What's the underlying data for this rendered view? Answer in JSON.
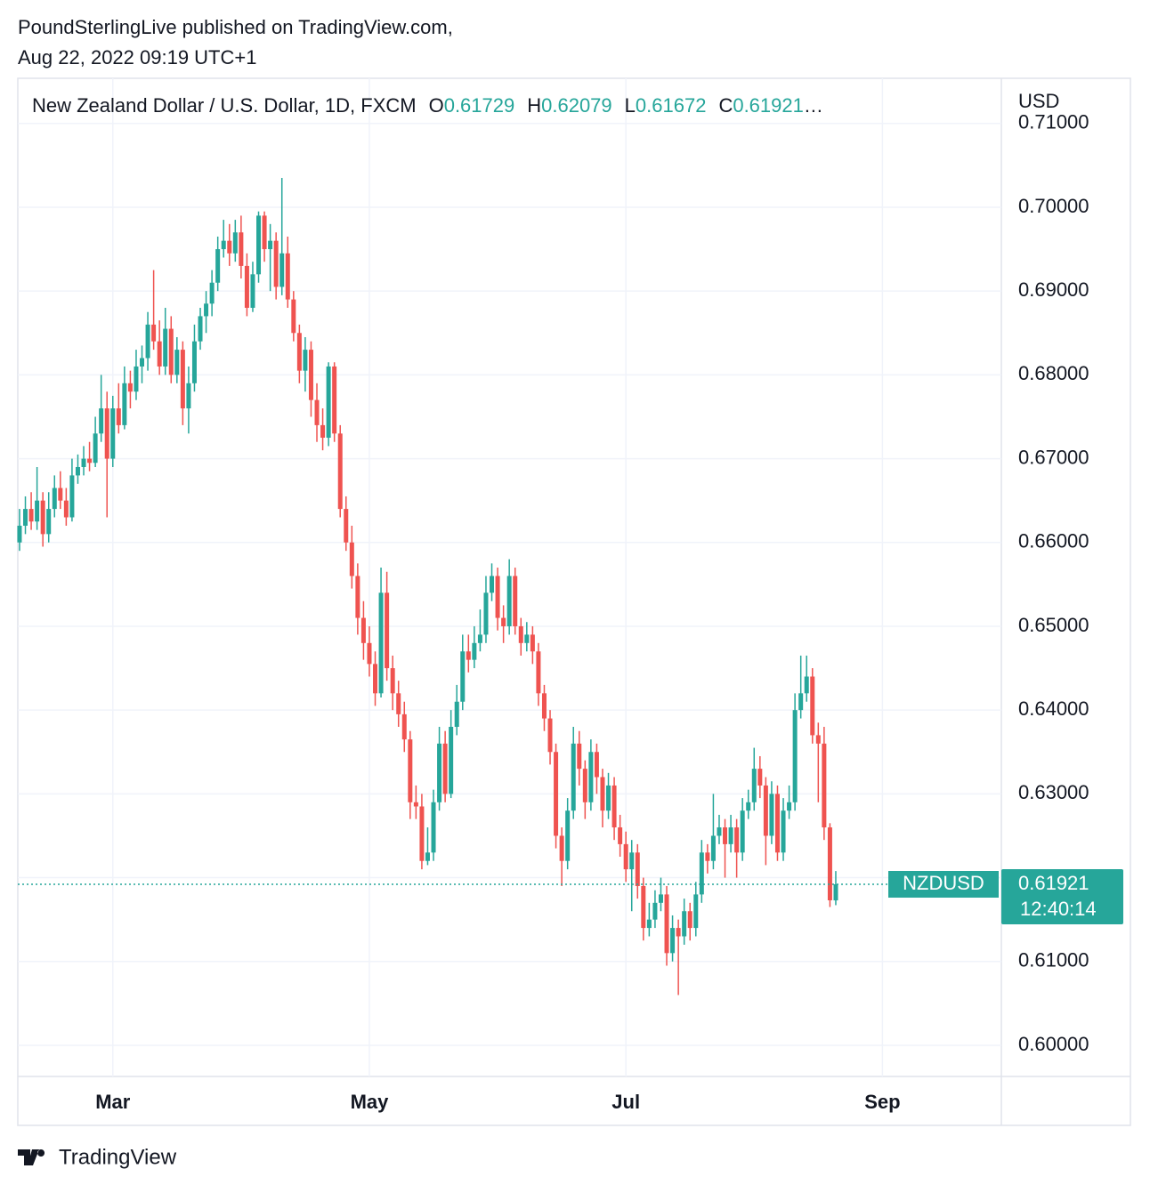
{
  "header": {
    "publisher": "PoundSterlingLive published on TradingView.com,",
    "timestamp": "Aug 22, 2022 09:19 UTC+1"
  },
  "footer": {
    "brand": "TradingView"
  },
  "chart_data": {
    "type": "candlestick",
    "title": "New Zealand Dollar / U.S. Dollar, 1D, FXCM",
    "ohlc_labels": [
      "O",
      "H",
      "L",
      "C"
    ],
    "legend_ellipsis": "…",
    "y_axis_label": "USD",
    "symbol": "NZDUSD",
    "countdown": "12:40:14",
    "up_color": "#26a69a",
    "down_color": "#ef5350",
    "grid": true,
    "xlim": [
      -0.3,
      168.4
    ],
    "xticks": [
      {
        "value": 16,
        "label": "Mar"
      },
      {
        "value": 60,
        "label": "May"
      },
      {
        "value": 104,
        "label": "Jul"
      },
      {
        "value": 148,
        "label": "Sep"
      }
    ],
    "ylim": [
      0.59628,
      0.71539
    ],
    "yticks": [
      {
        "value": 0.6,
        "label": "0.60000"
      },
      {
        "value": 0.61,
        "label": "0.61000"
      },
      {
        "value": 0.62,
        "label": "0.62000"
      },
      {
        "value": 0.63,
        "label": "0.63000"
      },
      {
        "value": 0.64,
        "label": "0.64000"
      },
      {
        "value": 0.65,
        "label": "0.65000"
      },
      {
        "value": 0.66,
        "label": "0.66000"
      },
      {
        "value": 0.67,
        "label": "0.67000"
      },
      {
        "value": 0.68,
        "label": "0.68000"
      },
      {
        "value": 0.69,
        "label": "0.69000"
      },
      {
        "value": 0.7,
        "label": "0.70000"
      },
      {
        "value": 0.71,
        "label": "0.71000"
      }
    ],
    "ohlc": [
      [
        0.66,
        0.664,
        0.659,
        0.662
      ],
      [
        0.662,
        0.6655,
        0.661,
        0.664
      ],
      [
        0.664,
        0.666,
        0.6615,
        0.6625
      ],
      [
        0.6625,
        0.669,
        0.6615,
        0.665
      ],
      [
        0.665,
        0.666,
        0.6595,
        0.661
      ],
      [
        0.661,
        0.666,
        0.66,
        0.664
      ],
      [
        0.664,
        0.668,
        0.663,
        0.6665
      ],
      [
        0.6665,
        0.6685,
        0.664,
        0.665
      ],
      [
        0.665,
        0.6665,
        0.662,
        0.663
      ],
      [
        0.663,
        0.67,
        0.6625,
        0.668
      ],
      [
        0.668,
        0.6705,
        0.667,
        0.669
      ],
      [
        0.669,
        0.6715,
        0.668,
        0.67
      ],
      [
        0.67,
        0.672,
        0.6685,
        0.6695
      ],
      [
        0.6695,
        0.675,
        0.669,
        0.673
      ],
      [
        0.673,
        0.68,
        0.672,
        0.676
      ],
      [
        0.676,
        0.678,
        0.663,
        0.67
      ],
      [
        0.67,
        0.6775,
        0.669,
        0.676
      ],
      [
        0.676,
        0.679,
        0.673,
        0.674
      ],
      [
        0.674,
        0.681,
        0.6735,
        0.679
      ],
      [
        0.679,
        0.6805,
        0.676,
        0.678
      ],
      [
        0.678,
        0.683,
        0.677,
        0.681
      ],
      [
        0.681,
        0.6835,
        0.679,
        0.682
      ],
      [
        0.682,
        0.6875,
        0.6805,
        0.686
      ],
      [
        0.686,
        0.6925,
        0.683,
        0.684
      ],
      [
        0.684,
        0.6865,
        0.68,
        0.681
      ],
      [
        0.681,
        0.688,
        0.68,
        0.6855
      ],
      [
        0.6855,
        0.687,
        0.679,
        0.68
      ],
      [
        0.68,
        0.6845,
        0.679,
        0.683
      ],
      [
        0.683,
        0.684,
        0.674,
        0.676
      ],
      [
        0.676,
        0.681,
        0.673,
        0.679
      ],
      [
        0.679,
        0.686,
        0.678,
        0.684
      ],
      [
        0.684,
        0.688,
        0.683,
        0.687
      ],
      [
        0.687,
        0.69,
        0.685,
        0.6885
      ],
      [
        0.6885,
        0.6925,
        0.687,
        0.691
      ],
      [
        0.691,
        0.6965,
        0.69,
        0.695
      ],
      [
        0.695,
        0.6985,
        0.694,
        0.696
      ],
      [
        0.696,
        0.698,
        0.693,
        0.6945
      ],
      [
        0.6945,
        0.6985,
        0.6935,
        0.697
      ],
      [
        0.697,
        0.699,
        0.6915,
        0.693
      ],
      [
        0.693,
        0.6945,
        0.687,
        0.688
      ],
      [
        0.688,
        0.6935,
        0.6875,
        0.692
      ],
      [
        0.692,
        0.6995,
        0.691,
        0.699
      ],
      [
        0.699,
        0.6995,
        0.6935,
        0.695
      ],
      [
        0.695,
        0.698,
        0.69,
        0.696
      ],
      [
        0.696,
        0.697,
        0.689,
        0.6905
      ],
      [
        0.6905,
        0.7035,
        0.6895,
        0.6945
      ],
      [
        0.6945,
        0.6965,
        0.688,
        0.689
      ],
      [
        0.689,
        0.69,
        0.684,
        0.685
      ],
      [
        0.685,
        0.686,
        0.679,
        0.6805
      ],
      [
        0.6805,
        0.6845,
        0.678,
        0.683
      ],
      [
        0.683,
        0.684,
        0.675,
        0.677
      ],
      [
        0.677,
        0.679,
        0.672,
        0.674
      ],
      [
        0.674,
        0.676,
        0.671,
        0.6725
      ],
      [
        0.6725,
        0.6815,
        0.6715,
        0.681
      ],
      [
        0.681,
        0.6815,
        0.672,
        0.673
      ],
      [
        0.673,
        0.674,
        0.663,
        0.664
      ],
      [
        0.664,
        0.6655,
        0.659,
        0.66
      ],
      [
        0.66,
        0.662,
        0.6545,
        0.656
      ],
      [
        0.656,
        0.6575,
        0.649,
        0.651
      ],
      [
        0.651,
        0.653,
        0.646,
        0.648
      ],
      [
        0.648,
        0.65,
        0.644,
        0.6455
      ],
      [
        0.6455,
        0.647,
        0.6405,
        0.642
      ],
      [
        0.642,
        0.657,
        0.6415,
        0.654
      ],
      [
        0.654,
        0.6565,
        0.6435,
        0.645
      ],
      [
        0.645,
        0.6465,
        0.64,
        0.642
      ],
      [
        0.642,
        0.6435,
        0.638,
        0.6395
      ],
      [
        0.6395,
        0.641,
        0.635,
        0.6365
      ],
      [
        0.6365,
        0.6375,
        0.627,
        0.629
      ],
      [
        0.629,
        0.631,
        0.627,
        0.6285
      ],
      [
        0.6285,
        0.63,
        0.621,
        0.622
      ],
      [
        0.622,
        0.626,
        0.6215,
        0.623
      ],
      [
        0.623,
        0.6305,
        0.622,
        0.629
      ],
      [
        0.629,
        0.638,
        0.628,
        0.636
      ],
      [
        0.636,
        0.6375,
        0.629,
        0.63
      ],
      [
        0.63,
        0.64,
        0.6295,
        0.638
      ],
      [
        0.638,
        0.643,
        0.637,
        0.641
      ],
      [
        0.641,
        0.649,
        0.64,
        0.647
      ],
      [
        0.647,
        0.649,
        0.6445,
        0.646
      ],
      [
        0.646,
        0.65,
        0.645,
        0.648
      ],
      [
        0.648,
        0.652,
        0.647,
        0.649
      ],
      [
        0.649,
        0.656,
        0.648,
        0.654
      ],
      [
        0.654,
        0.6575,
        0.653,
        0.656
      ],
      [
        0.656,
        0.657,
        0.6495,
        0.651
      ],
      [
        0.651,
        0.6525,
        0.648,
        0.65
      ],
      [
        0.65,
        0.658,
        0.649,
        0.656
      ],
      [
        0.656,
        0.657,
        0.649,
        0.65
      ],
      [
        0.65,
        0.651,
        0.6465,
        0.648
      ],
      [
        0.648,
        0.6505,
        0.647,
        0.649
      ],
      [
        0.649,
        0.65,
        0.6455,
        0.647
      ],
      [
        0.647,
        0.648,
        0.6405,
        0.642
      ],
      [
        0.642,
        0.643,
        0.6375,
        0.639
      ],
      [
        0.639,
        0.64,
        0.6335,
        0.635
      ],
      [
        0.635,
        0.636,
        0.6235,
        0.625
      ],
      [
        0.625,
        0.626,
        0.619,
        0.622
      ],
      [
        0.622,
        0.6295,
        0.621,
        0.628
      ],
      [
        0.628,
        0.638,
        0.627,
        0.636
      ],
      [
        0.636,
        0.6375,
        0.631,
        0.633
      ],
      [
        0.633,
        0.634,
        0.627,
        0.629
      ],
      [
        0.629,
        0.6365,
        0.628,
        0.635
      ],
      [
        0.635,
        0.636,
        0.63,
        0.632
      ],
      [
        0.632,
        0.633,
        0.626,
        0.628
      ],
      [
        0.628,
        0.6325,
        0.627,
        0.631
      ],
      [
        0.631,
        0.632,
        0.6245,
        0.626
      ],
      [
        0.626,
        0.6275,
        0.6225,
        0.624
      ],
      [
        0.624,
        0.6255,
        0.6195,
        0.621
      ],
      [
        0.621,
        0.6245,
        0.616,
        0.623
      ],
      [
        0.623,
        0.624,
        0.6175,
        0.619
      ],
      [
        0.619,
        0.62,
        0.6125,
        0.614
      ],
      [
        0.614,
        0.617,
        0.613,
        0.615
      ],
      [
        0.615,
        0.6185,
        0.614,
        0.617
      ],
      [
        0.617,
        0.62,
        0.616,
        0.618
      ],
      [
        0.618,
        0.619,
        0.6095,
        0.611
      ],
      [
        0.611,
        0.6155,
        0.61,
        0.614
      ],
      [
        0.614,
        0.615,
        0.606,
        0.613
      ],
      [
        0.613,
        0.6175,
        0.612,
        0.616
      ],
      [
        0.616,
        0.617,
        0.6125,
        0.614
      ],
      [
        0.614,
        0.6195,
        0.613,
        0.618
      ],
      [
        0.618,
        0.6245,
        0.617,
        0.623
      ],
      [
        0.623,
        0.624,
        0.6205,
        0.622
      ],
      [
        0.622,
        0.63,
        0.621,
        0.625
      ],
      [
        0.625,
        0.6275,
        0.624,
        0.626
      ],
      [
        0.626,
        0.627,
        0.62,
        0.624
      ],
      [
        0.624,
        0.6275,
        0.623,
        0.626
      ],
      [
        0.626,
        0.627,
        0.62,
        0.623
      ],
      [
        0.623,
        0.6295,
        0.622,
        0.628
      ],
      [
        0.628,
        0.6305,
        0.627,
        0.629
      ],
      [
        0.629,
        0.6355,
        0.628,
        0.633
      ],
      [
        0.633,
        0.6345,
        0.6295,
        0.631
      ],
      [
        0.631,
        0.632,
        0.6215,
        0.625
      ],
      [
        0.625,
        0.6315,
        0.624,
        0.63
      ],
      [
        0.63,
        0.631,
        0.622,
        0.623
      ],
      [
        0.623,
        0.6295,
        0.622,
        0.628
      ],
      [
        0.628,
        0.631,
        0.627,
        0.629
      ],
      [
        0.629,
        0.642,
        0.628,
        0.64
      ],
      [
        0.64,
        0.6465,
        0.639,
        0.642
      ],
      [
        0.642,
        0.6465,
        0.641,
        0.644
      ],
      [
        0.644,
        0.645,
        0.636,
        0.637
      ],
      [
        0.637,
        0.6385,
        0.629,
        0.636
      ],
      [
        0.636,
        0.638,
        0.6245,
        0.626
      ],
      [
        0.626,
        0.6265,
        0.6165,
        0.6173
      ],
      [
        0.61729,
        0.62079,
        0.61672,
        0.61921
      ]
    ]
  }
}
